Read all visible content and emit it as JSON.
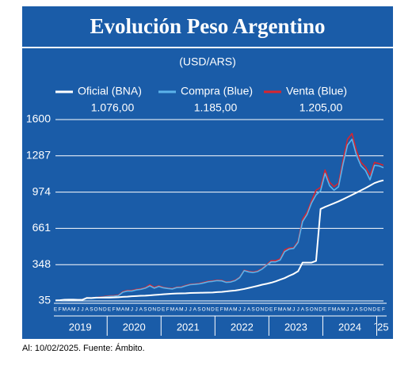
{
  "chart_data": {
    "type": "line",
    "title": "Evolución Peso Argentino",
    "subtitle": "(USD/ARS)",
    "note": "Al: 10/02/2025. Fuente: Ámbito.",
    "categories": [
      "E",
      "F",
      "M",
      "A",
      "M",
      "J",
      "J",
      "A",
      "S",
      "O",
      "N",
      "D",
      "E",
      "F",
      "M",
      "A",
      "M",
      "J",
      "J",
      "A",
      "S",
      "O",
      "N",
      "D",
      "E",
      "F",
      "M",
      "A",
      "M",
      "J",
      "J",
      "A",
      "S",
      "O",
      "N",
      "D",
      "E",
      "F",
      "M",
      "A",
      "M",
      "J",
      "J",
      "A",
      "S",
      "O",
      "N",
      "D",
      "E",
      "F",
      "M",
      "A",
      "M",
      "J",
      "J",
      "A",
      "S",
      "O",
      "N",
      "D",
      "E",
      "F",
      "M",
      "A",
      "M",
      "J",
      "J",
      "A",
      "S",
      "O",
      "N",
      "D",
      "E",
      "F"
    ],
    "year_labels": [
      "2019",
      "2020",
      "2021",
      "2022",
      "2023",
      "2024",
      "´25"
    ],
    "ylim": [
      35,
      1600
    ],
    "yticks": [
      35,
      348,
      661,
      974,
      1287,
      1600
    ],
    "grid": true,
    "series": [
      {
        "name": "Venta (Blue)",
        "color": "#d9252e",
        "values": [
          39,
          41,
          44,
          46,
          46,
          44,
          45,
          61,
          60,
          63,
          68,
          73,
          78,
          80,
          84,
          115,
          125,
          125,
          135,
          140,
          150,
          175,
          152,
          166,
          152,
          146,
          142,
          154,
          156,
          169,
          179,
          182,
          186,
          195,
          205,
          208,
          214,
          212,
          199,
          202,
          214,
          240,
          300,
          290,
          285,
          293,
          315,
          347,
          382,
          382,
          398,
          475,
          492,
          494,
          550,
          740,
          800,
          900,
          990,
          1015,
          1165,
          1060,
          1020,
          1050,
          1250,
          1430,
          1480,
          1330,
          1230,
          1190,
          1120,
          1230,
          1220,
          1205
        ],
        "value_labels": [
          null,
          null,
          null,
          null,
          null,
          null,
          null,
          null,
          null,
          null,
          null,
          null,
          null,
          null,
          null,
          null,
          null,
          null,
          null,
          null,
          null,
          null,
          null,
          null,
          null,
          null,
          null,
          null,
          null,
          null,
          null,
          null,
          null,
          null,
          null,
          null,
          null,
          null,
          null,
          null,
          null,
          null,
          null,
          null,
          null,
          null,
          null,
          null,
          null,
          null,
          null,
          null,
          null,
          null,
          null,
          null,
          null,
          null,
          null,
          null,
          null,
          null,
          null,
          null,
          null,
          null,
          null,
          null,
          null,
          null,
          null,
          null,
          null,
          "1.205,00"
        ]
      },
      {
        "name": "Compra (Blue)",
        "color": "#5cb3ea",
        "values": [
          37,
          39,
          42,
          44,
          44,
          42,
          43,
          58,
          57,
          60,
          65,
          70,
          74,
          76,
          80,
          110,
          120,
          120,
          130,
          135,
          145,
          165,
          145,
          160,
          148,
          142,
          138,
          150,
          152,
          165,
          175,
          178,
          182,
          190,
          200,
          204,
          210,
          208,
          195,
          198,
          210,
          236,
          296,
          285,
          280,
          288,
          310,
          342,
          372,
          372,
          388,
          460,
          482,
          488,
          540,
          720,
          780,
          880,
          950,
          985,
          1135,
          1030,
          990,
          1020,
          1215,
          1380,
          1430,
          1290,
          1200,
          1160,
          1080,
          1205,
          1200,
          1185
        ],
        "value_labels": [
          null,
          null,
          null,
          null,
          null,
          null,
          null,
          null,
          null,
          null,
          null,
          null,
          null,
          null,
          null,
          null,
          null,
          null,
          null,
          null,
          null,
          null,
          null,
          null,
          null,
          null,
          null,
          null,
          null,
          null,
          null,
          null,
          null,
          null,
          null,
          null,
          null,
          null,
          null,
          null,
          null,
          null,
          null,
          null,
          null,
          null,
          null,
          null,
          null,
          null,
          null,
          null,
          null,
          null,
          null,
          null,
          null,
          null,
          null,
          null,
          null,
          null,
          null,
          null,
          null,
          null,
          null,
          null,
          null,
          null,
          null,
          null,
          null,
          "1.185,00"
        ]
      },
      {
        "name": "Oficial (BNA)",
        "color": "#ffffff",
        "values": [
          39,
          41,
          45,
          46,
          46,
          44,
          45,
          61,
          60,
          63,
          63,
          63,
          63,
          65,
          67,
          70,
          72,
          75,
          77,
          79,
          80,
          83,
          86,
          89,
          92,
          95,
          97,
          99,
          100,
          101,
          103,
          104,
          105,
          106,
          107,
          108,
          111,
          113,
          117,
          121,
          125,
          131,
          138,
          147,
          156,
          165,
          175,
          183,
          192,
          204,
          218,
          232,
          251,
          268,
          291,
          366,
          366,
          366,
          380,
          828,
          846,
          862,
          878,
          894,
          912,
          931,
          950,
          969,
          989,
          1009,
          1030,
          1052,
          1066,
          1076
        ],
        "value_labels": [
          null,
          null,
          null,
          null,
          null,
          null,
          null,
          null,
          null,
          null,
          null,
          null,
          null,
          null,
          null,
          null,
          null,
          null,
          null,
          null,
          null,
          null,
          null,
          null,
          null,
          null,
          null,
          null,
          null,
          null,
          null,
          null,
          null,
          null,
          null,
          null,
          null,
          null,
          null,
          null,
          null,
          null,
          null,
          null,
          null,
          null,
          null,
          null,
          null,
          null,
          null,
          null,
          null,
          null,
          null,
          null,
          null,
          null,
          null,
          null,
          null,
          null,
          null,
          null,
          null,
          null,
          null,
          null,
          null,
          null,
          null,
          null,
          null,
          "1.076,00"
        ]
      }
    ]
  }
}
